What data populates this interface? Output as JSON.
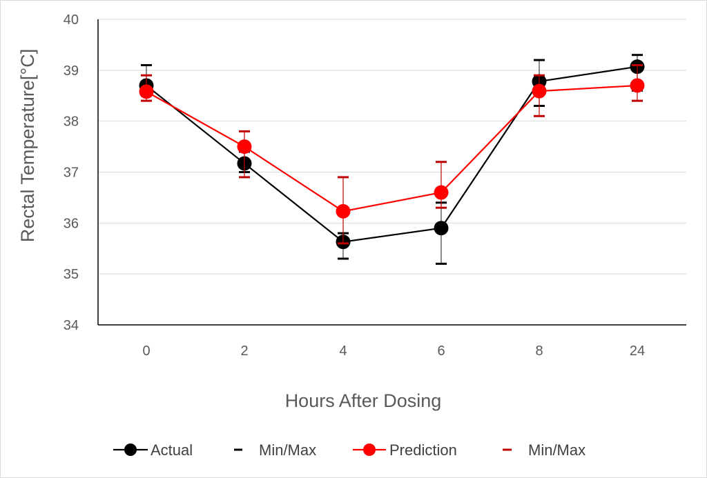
{
  "chart_data": {
    "type": "line",
    "title": "",
    "xlabel": "Hours After Dosing",
    "ylabel": "Rectal Temperature[°C]",
    "categories": [
      "0",
      "2",
      "4",
      "6",
      "8",
      "24"
    ],
    "ylim": [
      34,
      40
    ],
    "yticks": [
      34,
      35,
      36,
      37,
      38,
      39,
      40
    ],
    "grid": "horizontal",
    "legend_position": "bottom",
    "series": [
      {
        "name": "Actual",
        "color": "#000000",
        "values": [
          38.7,
          37.17,
          35.63,
          35.9,
          38.78,
          39.07
        ],
        "min": [
          38.5,
          37.0,
          35.3,
          35.2,
          38.3,
          38.6
        ],
        "max": [
          39.1,
          37.4,
          35.8,
          36.4,
          39.2,
          39.3
        ],
        "errorbar_legend": "Min/Max"
      },
      {
        "name": "Prediction",
        "color": "#ff0000",
        "errorbar_color": "#c00000",
        "values": [
          38.58,
          37.5,
          36.23,
          36.6,
          38.59,
          38.7
        ],
        "min": [
          38.4,
          36.9,
          35.6,
          36.3,
          38.1,
          38.4
        ],
        "max": [
          38.9,
          37.8,
          36.9,
          37.2,
          38.9,
          39.1
        ],
        "errorbar_legend": "Min/Max"
      }
    ],
    "legend": [
      "Actual",
      "Min/Max",
      "Prediction",
      "Min/Max"
    ]
  }
}
